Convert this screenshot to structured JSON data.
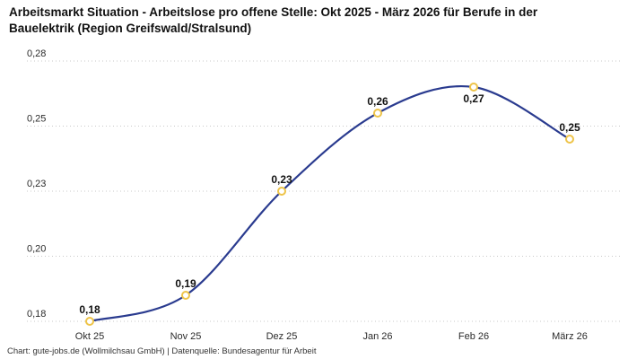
{
  "title": "Arbeitsmarkt Situation - Arbeitslose pro offene Stelle: Okt 2025 - März 2026 für Berufe in der Bauelektrik (Region Greifswald/Stralsund)",
  "footer": "Chart: gute-jobs.de (Wollmilchsau GmbH) | Datenquelle: Bundesagentur für Arbeit",
  "chart_data": {
    "type": "line",
    "categories": [
      "Okt 25",
      "Nov 25",
      "Dez 25",
      "Jan 26",
      "Feb 26",
      "März 26"
    ],
    "values": [
      0.18,
      0.19,
      0.23,
      0.26,
      0.27,
      0.25
    ],
    "value_labels": [
      "0,18",
      "0,19",
      "0,23",
      "0,26",
      "0,27",
      "0,25"
    ],
    "y_ticks": [
      {
        "label": "0,28",
        "value": 0.28
      },
      {
        "label": "0,25",
        "value": 0.255
      },
      {
        "label": "0,23",
        "value": 0.23
      },
      {
        "label": "0,20",
        "value": 0.205
      },
      {
        "label": "0,18",
        "value": 0.18
      }
    ],
    "ylim": [
      0.18,
      0.28
    ],
    "grid": "dotted-horizontal",
    "legend": "none",
    "line_color": "#2a3b8f",
    "marker_stroke_color": "#eec449",
    "marker_fill_color": "#ffffff"
  }
}
